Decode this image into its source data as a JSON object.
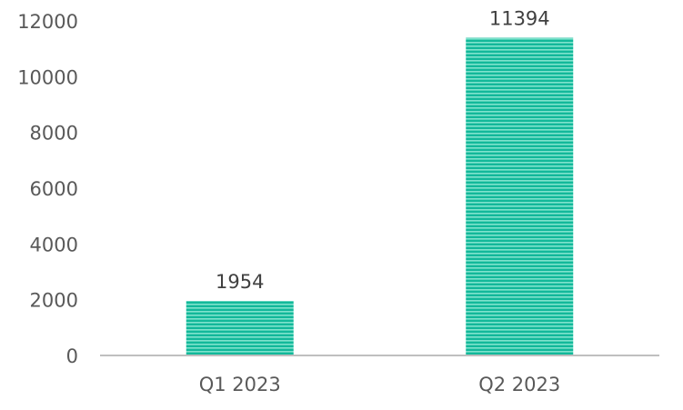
{
  "chart_data": {
    "type": "bar",
    "categories": [
      "Q1 2023",
      "Q2 2023"
    ],
    "values": [
      1954,
      11394
    ],
    "data_labels": [
      "1954",
      "11394"
    ],
    "title": "",
    "xlabel": "",
    "ylabel": "",
    "ylim": [
      0,
      12000
    ],
    "yticks": [
      0,
      2000,
      4000,
      6000,
      8000,
      10000,
      12000
    ],
    "ytick_labels": [
      "0",
      "2000",
      "4000",
      "6000",
      "8000",
      "10000",
      "12000"
    ],
    "grid": false,
    "legend": "none",
    "colors": {
      "bar": "#12b89a",
      "bar_stripe": "#7fe3cd",
      "axis": "#bfbfbf",
      "text": "#595959"
    }
  }
}
